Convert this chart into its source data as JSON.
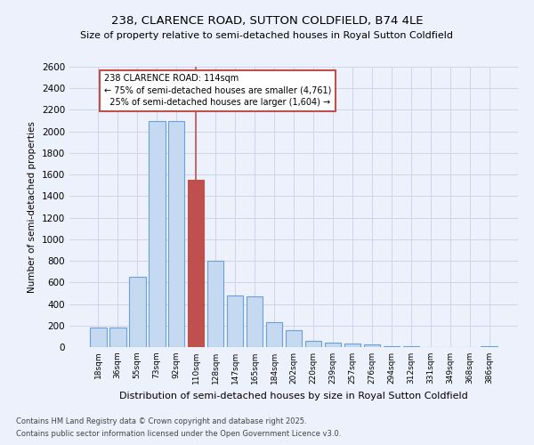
{
  "title1": "238, CLARENCE ROAD, SUTTON COLDFIELD, B74 4LE",
  "title2": "Size of property relative to semi-detached houses in Royal Sutton Coldfield",
  "xlabel": "Distribution of semi-detached houses by size in Royal Sutton Coldfield",
  "ylabel": "Number of semi-detached properties",
  "categories": [
    "18sqm",
    "36sqm",
    "55sqm",
    "73sqm",
    "92sqm",
    "110sqm",
    "128sqm",
    "147sqm",
    "165sqm",
    "184sqm",
    "202sqm",
    "220sqm",
    "239sqm",
    "257sqm",
    "276sqm",
    "294sqm",
    "312sqm",
    "331sqm",
    "349sqm",
    "368sqm",
    "386sqm"
  ],
  "values": [
    180,
    180,
    650,
    2100,
    2100,
    1550,
    800,
    480,
    470,
    230,
    160,
    55,
    45,
    35,
    25,
    10,
    5,
    3,
    2,
    1,
    5
  ],
  "property_index": 5,
  "property_size": "114sqm",
  "pct_smaller": 75,
  "n_smaller": 4761,
  "pct_larger": 25,
  "n_larger": 1604,
  "bar_color_normal": "#c5d9f1",
  "bar_color_highlight": "#c0504d",
  "bar_edge_normal": "#6a9fd8",
  "bar_edge_highlight": "#c0504d",
  "vline_color": "#c0504d",
  "annotation_box_edgecolor": "#c0504d",
  "ylim": [
    0,
    2600
  ],
  "yticks": [
    0,
    200,
    400,
    600,
    800,
    1000,
    1200,
    1400,
    1600,
    1800,
    2000,
    2200,
    2400,
    2600
  ],
  "grid_color": "#cdd5e8",
  "bg_color": "#edf1fb",
  "title1_fontsize": 9.5,
  "title2_fontsize": 8.0,
  "footnote1": "Contains HM Land Registry data © Crown copyright and database right 2025.",
  "footnote2": "Contains public sector information licensed under the Open Government Licence v3.0."
}
